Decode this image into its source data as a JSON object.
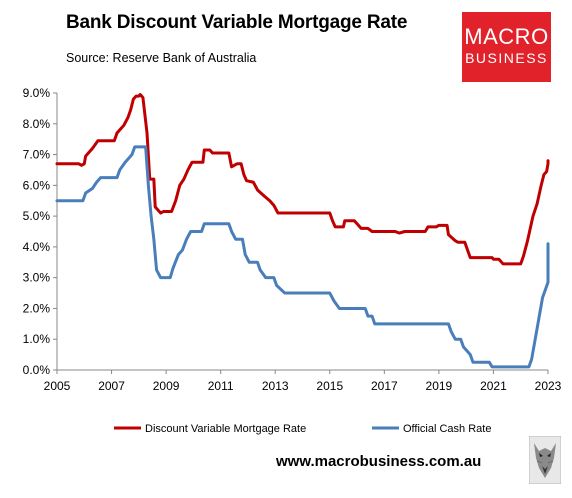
{
  "title": "Bank Discount Variable Mortgage Rate",
  "subtitle": "Source: Reserve Bank of Australia",
  "logo": {
    "line1": "MACRO",
    "line2": "BUSINESS",
    "color": "#e1222b",
    "text_color": "#ffffff"
  },
  "website": "www.macrobusiness.com.au",
  "wolf_icon": "wolf-logo-icon",
  "chart_data": {
    "type": "line",
    "title": "Bank Discount Variable Mortgage Rate",
    "subtitle": "Source: Reserve Bank of Australia",
    "xlabel": "",
    "ylabel": "",
    "xlim": [
      2005,
      2023
    ],
    "ylim": [
      0,
      9
    ],
    "x_ticks": [
      "2005",
      "2007",
      "2009",
      "2011",
      "2013",
      "2015",
      "2017",
      "2019",
      "2021",
      "2023"
    ],
    "y_ticks": [
      "0.0%",
      "1.0%",
      "2.0%",
      "3.0%",
      "4.0%",
      "5.0%",
      "6.0%",
      "7.0%",
      "8.0%",
      "9.0%"
    ],
    "grid": false,
    "legend_position": "bottom",
    "series": [
      {
        "name": "Discount Variable Mortgage Rate",
        "color": "#c00000",
        "points": [
          [
            2005.0,
            6.7
          ],
          [
            2005.8,
            6.7
          ],
          [
            2005.9,
            6.65
          ],
          [
            2006.0,
            6.7
          ],
          [
            2006.05,
            6.95
          ],
          [
            2006.3,
            7.2
          ],
          [
            2006.5,
            7.45
          ],
          [
            2007.1,
            7.45
          ],
          [
            2007.2,
            7.7
          ],
          [
            2007.45,
            7.95
          ],
          [
            2007.6,
            8.2
          ],
          [
            2007.7,
            8.45
          ],
          [
            2007.8,
            8.8
          ],
          [
            2007.9,
            8.9
          ],
          [
            2008.0,
            8.9
          ],
          [
            2008.05,
            8.95
          ],
          [
            2008.15,
            8.85
          ],
          [
            2008.3,
            7.7
          ],
          [
            2008.4,
            6.2
          ],
          [
            2008.55,
            6.2
          ],
          [
            2008.6,
            5.3
          ],
          [
            2008.7,
            5.2
          ],
          [
            2008.8,
            5.1
          ],
          [
            2008.9,
            5.15
          ],
          [
            2009.2,
            5.15
          ],
          [
            2009.35,
            5.5
          ],
          [
            2009.5,
            6.0
          ],
          [
            2009.65,
            6.2
          ],
          [
            2009.8,
            6.5
          ],
          [
            2009.95,
            6.75
          ],
          [
            2010.35,
            6.75
          ],
          [
            2010.4,
            7.15
          ],
          [
            2010.6,
            7.15
          ],
          [
            2010.7,
            7.05
          ],
          [
            2011.3,
            7.05
          ],
          [
            2011.4,
            6.6
          ],
          [
            2011.6,
            6.7
          ],
          [
            2011.75,
            6.7
          ],
          [
            2011.85,
            6.35
          ],
          [
            2011.95,
            6.15
          ],
          [
            2012.2,
            6.1
          ],
          [
            2012.35,
            5.85
          ],
          [
            2012.6,
            5.65
          ],
          [
            2012.8,
            5.5
          ],
          [
            2012.95,
            5.35
          ],
          [
            2013.1,
            5.1
          ],
          [
            2014.5,
            5.1
          ],
          [
            2014.7,
            5.1
          ],
          [
            2015.0,
            5.1
          ],
          [
            2015.1,
            4.85
          ],
          [
            2015.2,
            4.65
          ],
          [
            2015.5,
            4.65
          ],
          [
            2015.55,
            4.85
          ],
          [
            2015.9,
            4.85
          ],
          [
            2016.0,
            4.75
          ],
          [
            2016.15,
            4.6
          ],
          [
            2016.4,
            4.6
          ],
          [
            2016.55,
            4.5
          ],
          [
            2017.4,
            4.5
          ],
          [
            2017.55,
            4.45
          ],
          [
            2017.75,
            4.5
          ],
          [
            2018.5,
            4.5
          ],
          [
            2018.6,
            4.65
          ],
          [
            2018.9,
            4.65
          ],
          [
            2019.0,
            4.7
          ],
          [
            2019.3,
            4.7
          ],
          [
            2019.35,
            4.4
          ],
          [
            2019.6,
            4.2
          ],
          [
            2019.7,
            4.15
          ],
          [
            2019.95,
            4.15
          ],
          [
            2020.05,
            3.9
          ],
          [
            2020.15,
            3.65
          ],
          [
            2020.95,
            3.65
          ],
          [
            2021.0,
            3.6
          ],
          [
            2021.2,
            3.6
          ],
          [
            2021.35,
            3.45
          ],
          [
            2022.0,
            3.45
          ],
          [
            2022.1,
            3.7
          ],
          [
            2022.25,
            4.2
          ],
          [
            2022.45,
            5.0
          ],
          [
            2022.6,
            5.4
          ],
          [
            2022.75,
            6.0
          ],
          [
            2022.85,
            6.35
          ],
          [
            2022.95,
            6.45
          ],
          [
            2023.05,
            6.7
          ],
          [
            2023.2,
            6.8
          ],
          [
            2023.35,
            6.75
          ]
        ]
      },
      {
        "name": "Official Cash Rate",
        "color": "#4a7ebb",
        "points": [
          [
            2005.0,
            5.5
          ],
          [
            2005.95,
            5.5
          ],
          [
            2006.05,
            5.75
          ],
          [
            2006.3,
            5.9
          ],
          [
            2006.45,
            6.1
          ],
          [
            2006.6,
            6.25
          ],
          [
            2007.2,
            6.25
          ],
          [
            2007.3,
            6.5
          ],
          [
            2007.5,
            6.75
          ],
          [
            2007.75,
            7.0
          ],
          [
            2007.85,
            7.25
          ],
          [
            2008.25,
            7.25
          ],
          [
            2008.35,
            6.0
          ],
          [
            2008.45,
            5.0
          ],
          [
            2008.55,
            4.25
          ],
          [
            2008.65,
            3.25
          ],
          [
            2008.8,
            3.0
          ],
          [
            2009.15,
            3.0
          ],
          [
            2009.25,
            3.3
          ],
          [
            2009.45,
            3.75
          ],
          [
            2009.6,
            3.9
          ],
          [
            2009.75,
            4.25
          ],
          [
            2009.9,
            4.5
          ],
          [
            2010.3,
            4.5
          ],
          [
            2010.4,
            4.75
          ],
          [
            2011.3,
            4.75
          ],
          [
            2011.4,
            4.5
          ],
          [
            2011.55,
            4.25
          ],
          [
            2011.8,
            4.25
          ],
          [
            2011.9,
            3.75
          ],
          [
            2012.05,
            3.5
          ],
          [
            2012.35,
            3.5
          ],
          [
            2012.45,
            3.25
          ],
          [
            2012.65,
            3.0
          ],
          [
            2012.95,
            3.0
          ],
          [
            2013.05,
            2.75
          ],
          [
            2013.35,
            2.5
          ],
          [
            2014.2,
            2.5
          ],
          [
            2014.6,
            2.5
          ],
          [
            2015.0,
            2.5
          ],
          [
            2015.15,
            2.25
          ],
          [
            2015.35,
            2.0
          ],
          [
            2016.3,
            2.0
          ],
          [
            2016.4,
            1.75
          ],
          [
            2016.55,
            1.75
          ],
          [
            2016.65,
            1.5
          ],
          [
            2019.35,
            1.5
          ],
          [
            2019.45,
            1.25
          ],
          [
            2019.6,
            1.0
          ],
          [
            2019.8,
            1.0
          ],
          [
            2019.9,
            0.75
          ],
          [
            2020.15,
            0.5
          ],
          [
            2020.25,
            0.25
          ],
          [
            2020.85,
            0.25
          ],
          [
            2020.95,
            0.1
          ],
          [
            2022.3,
            0.1
          ],
          [
            2022.4,
            0.35
          ],
          [
            2022.5,
            0.85
          ],
          [
            2022.6,
            1.35
          ],
          [
            2022.7,
            1.85
          ],
          [
            2022.8,
            2.35
          ],
          [
            2022.9,
            2.6
          ],
          [
            2023.0,
            2.85
          ],
          [
            2023.1,
            3.1
          ],
          [
            2023.2,
            3.35
          ],
          [
            2023.3,
            3.6
          ],
          [
            2023.4,
            3.85
          ],
          [
            2023.55,
            4.1
          ]
        ]
      }
    ]
  }
}
